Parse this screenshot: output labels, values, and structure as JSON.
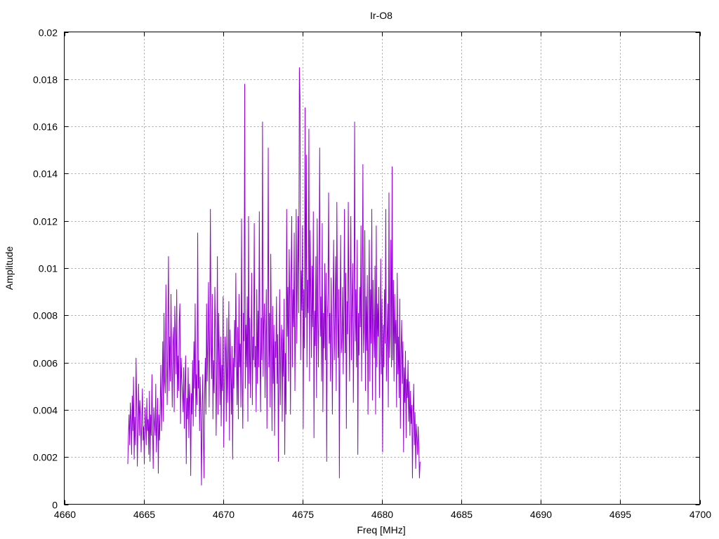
{
  "chart_data": {
    "type": "line",
    "title": "Ir-O8",
    "xlabel": "Freq [MHz]",
    "ylabel": "Amplitude",
    "xlim": [
      4660,
      4700
    ],
    "ylim": [
      0,
      0.02
    ],
    "xticks": [
      4660,
      4665,
      4670,
      4675,
      4680,
      4685,
      4690,
      4695,
      4700
    ],
    "yticks": [
      0,
      0.002,
      0.004,
      0.006,
      0.008,
      0.01,
      0.012,
      0.014,
      0.016,
      0.018,
      0.02
    ],
    "xtick_labels": [
      "4660",
      "4665",
      "4670",
      "4675",
      "4680",
      "4685",
      "4690",
      "4695",
      "4700"
    ],
    "ytick_labels": [
      "0",
      "0.002",
      "0.004",
      "0.006",
      "0.008",
      "0.01",
      "0.012",
      "0.014",
      "0.016",
      "0.018",
      "0.02"
    ],
    "grid": true,
    "legend": "none",
    "series": [
      {
        "color": "#9400d3",
        "x_start": 4664.0,
        "x_step": 0.04,
        "values": [
          0.0017,
          0.0029,
          0.0038,
          0.0025,
          0.0043,
          0.0035,
          0.0021,
          0.0046,
          0.0031,
          0.0054,
          0.0019,
          0.0037,
          0.0025,
          0.0062,
          0.0041,
          0.0016,
          0.0035,
          0.0051,
          0.0029,
          0.0044,
          0.0038,
          0.0022,
          0.0036,
          0.0049,
          0.0027,
          0.0033,
          0.0017,
          0.0041,
          0.0035,
          0.0025,
          0.0045,
          0.0031,
          0.0036,
          0.0021,
          0.0048,
          0.0018,
          0.0038,
          0.0029,
          0.0055,
          0.0033,
          0.0015,
          0.0041,
          0.0034,
          0.0029,
          0.0051,
          0.0022,
          0.0034,
          0.0045,
          0.0013,
          0.0038,
          0.0027,
          0.0041,
          0.0059,
          0.0031,
          0.0048,
          0.0069,
          0.0035,
          0.0081,
          0.0052,
          0.0047,
          0.0093,
          0.0061,
          0.0042,
          0.0075,
          0.0105,
          0.0048,
          0.0071,
          0.0052,
          0.0089,
          0.0061,
          0.0041,
          0.0068,
          0.0075,
          0.0039,
          0.0084,
          0.0072,
          0.0055,
          0.0091,
          0.0045,
          0.0063,
          0.0048,
          0.0078,
          0.0085,
          0.0034,
          0.0062,
          0.0053,
          0.0047,
          0.0039,
          0.0058,
          0.0032,
          0.0051,
          0.0063,
          0.0017,
          0.0045,
          0.0036,
          0.0058,
          0.0028,
          0.0051,
          0.0043,
          0.0012,
          0.0047,
          0.0038,
          0.0061,
          0.0033,
          0.0069,
          0.0049,
          0.0085,
          0.0037,
          0.0055,
          0.0042,
          0.0115,
          0.0049,
          0.0061,
          0.0031,
          0.0054,
          0.0035,
          0.0008,
          0.0042,
          0.0055,
          0.0029,
          0.0011,
          0.0048,
          0.0062,
          0.0038,
          0.0085,
          0.0052,
          0.0069,
          0.0094,
          0.0041,
          0.0075,
          0.0125,
          0.0067,
          0.0053,
          0.0089,
          0.0036,
          0.0061,
          0.0047,
          0.0092,
          0.0072,
          0.0029,
          0.0055,
          0.0105,
          0.0038,
          0.0081,
          0.0064,
          0.0042,
          0.0071,
          0.0033,
          0.0059,
          0.0048,
          0.0088,
          0.0024,
          0.0052,
          0.0071,
          0.0065,
          0.0035,
          0.0079,
          0.0043,
          0.0058,
          0.0086,
          0.0027,
          0.0074,
          0.0055,
          0.0038,
          0.0067,
          0.0019,
          0.0062,
          0.0049,
          0.0078,
          0.0058,
          0.0098,
          0.0061,
          0.0042,
          0.0075,
          0.0036,
          0.0089,
          0.0058,
          0.0068,
          0.0041,
          0.0121,
          0.0052,
          0.0032,
          0.0081,
          0.0069,
          0.0178,
          0.0049,
          0.0076,
          0.0058,
          0.0088,
          0.0035,
          0.0122,
          0.0051,
          0.0079,
          0.0045,
          0.0066,
          0.0098,
          0.0042,
          0.0071,
          0.0061,
          0.0119,
          0.0058,
          0.0067,
          0.0039,
          0.0091,
          0.0051,
          0.0082,
          0.0058,
          0.0124,
          0.0068,
          0.0039,
          0.0079,
          0.0061,
          0.0162,
          0.0054,
          0.0077,
          0.0085,
          0.0045,
          0.0069,
          0.0091,
          0.0032,
          0.0071,
          0.0151,
          0.0058,
          0.0081,
          0.0041,
          0.0106,
          0.0066,
          0.0031,
          0.0084,
          0.0051,
          0.0076,
          0.0029,
          0.0069,
          0.0062,
          0.0088,
          0.0051,
          0.0072,
          0.0018,
          0.0059,
          0.0091,
          0.0042,
          0.0065,
          0.0076,
          0.0035,
          0.0074,
          0.0054,
          0.0087,
          0.0021,
          0.0064,
          0.0038,
          0.0125,
          0.0071,
          0.0092,
          0.0052,
          0.0108,
          0.0085,
          0.0038,
          0.0095,
          0.0122,
          0.0058,
          0.0091,
          0.0075,
          0.0115,
          0.0048,
          0.0081,
          0.0125,
          0.0068,
          0.0098,
          0.0122,
          0.0081,
          0.0185,
          0.0172,
          0.0061,
          0.0099,
          0.0082,
          0.0118,
          0.0032,
          0.0091,
          0.0066,
          0.0168,
          0.0079,
          0.0148,
          0.0058,
          0.0095,
          0.0081,
          0.0159,
          0.0052,
          0.0116,
          0.0089,
          0.0062,
          0.0101,
          0.0075,
          0.0124,
          0.0028,
          0.0082,
          0.0067,
          0.0105,
          0.0045,
          0.0121,
          0.0079,
          0.0058,
          0.0096,
          0.0151,
          0.0071,
          0.0088,
          0.0052,
          0.0119,
          0.0039,
          0.0081,
          0.0066,
          0.0102,
          0.0061,
          0.0098,
          0.0018,
          0.0078,
          0.0089,
          0.0132,
          0.0068,
          0.0081,
          0.0052,
          0.0096,
          0.0074,
          0.0038,
          0.0086,
          0.0112,
          0.0061,
          0.0077,
          0.0105,
          0.0048,
          0.0128,
          0.0082,
          0.0062,
          0.0091,
          0.0011,
          0.0075,
          0.0114,
          0.0064,
          0.0069,
          0.0092,
          0.0055,
          0.0083,
          0.0125,
          0.0064,
          0.0098,
          0.0032,
          0.0086,
          0.0072,
          0.0128,
          0.0081,
          0.0052,
          0.0089,
          0.0122,
          0.0061,
          0.0085,
          0.0102,
          0.0043,
          0.0079,
          0.0162,
          0.0069,
          0.0091,
          0.0058,
          0.0112,
          0.0021,
          0.0081,
          0.0063,
          0.0092,
          0.0075,
          0.0118,
          0.0052,
          0.0089,
          0.0144,
          0.0064,
          0.0075,
          0.0116,
          0.0048,
          0.0088,
          0.0065,
          0.0097,
          0.0038,
          0.0079,
          0.0112,
          0.0052,
          0.0091,
          0.0068,
          0.0125,
          0.0044,
          0.0095,
          0.0073,
          0.0062,
          0.0101,
          0.0038,
          0.0118,
          0.0058,
          0.0085,
          0.0071,
          0.0092,
          0.0045,
          0.0064,
          0.0104,
          0.0055,
          0.0087,
          0.0022,
          0.0076,
          0.0058,
          0.0091,
          0.0068,
          0.0125,
          0.0052,
          0.0069,
          0.0085,
          0.0041,
          0.0132,
          0.0062,
          0.0072,
          0.0112,
          0.0058,
          0.0143,
          0.0061,
          0.0095,
          0.0052,
          0.0089,
          0.0068,
          0.0078,
          0.0041,
          0.0098,
          0.0055,
          0.0071,
          0.0045,
          0.0087,
          0.0032,
          0.0064,
          0.0078,
          0.0051,
          0.0069,
          0.0022,
          0.0058,
          0.0043,
          0.0065,
          0.0028,
          0.0053,
          0.0045,
          0.0061,
          0.0035,
          0.0052,
          0.0029,
          0.0048,
          0.0034,
          0.0042,
          0.0011,
          0.0038,
          0.0051,
          0.0025,
          0.0039,
          0.0015,
          0.0034,
          0.0028,
          0.0021,
          0.0033,
          0.0024,
          0.0011,
          0.0018
        ]
      }
    ]
  }
}
